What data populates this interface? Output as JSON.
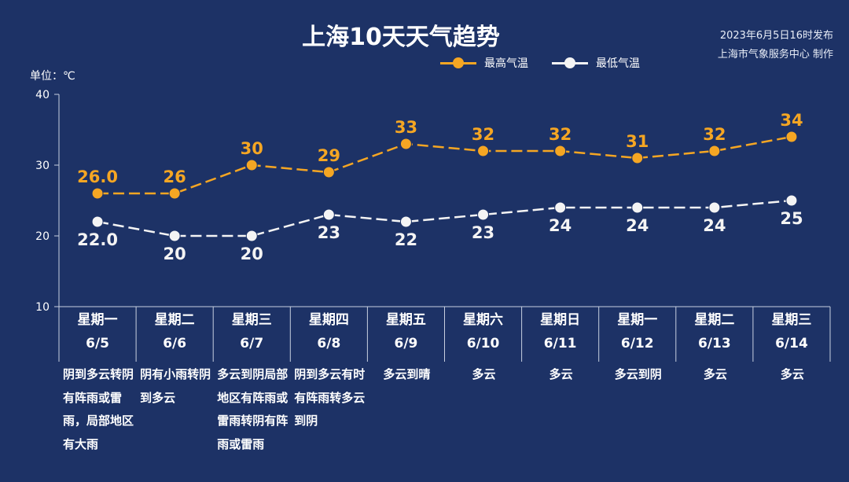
{
  "header": {
    "title": "上海10天天气趋势",
    "publish_line1": "2023年6月5日16时发布",
    "publish_line2": "上海市气象服务中心 制作",
    "unit": "单位：℃"
  },
  "colors": {
    "high": "#f5a623",
    "low": "#f4f4f4",
    "background": "#1d3266",
    "grid": "#c8d0e0"
  },
  "chart_data": {
    "type": "line",
    "title": "上海10天天气趋势",
    "ylabel": "单位：℃",
    "ylim": [
      10,
      40
    ],
    "yticks": [
      10,
      20,
      30,
      40
    ],
    "categories": [
      "6/5",
      "6/6",
      "6/7",
      "6/8",
      "6/9",
      "6/10",
      "6/11",
      "6/12",
      "6/13",
      "6/14"
    ],
    "series": [
      {
        "name": "最高气温",
        "values": [
          26,
          26,
          30,
          29,
          33,
          32,
          32,
          31,
          32,
          34
        ],
        "labels": [
          "26.0",
          "26",
          "30",
          "29",
          "33",
          "32",
          "32",
          "31",
          "32",
          "34"
        ],
        "color": "#f5a623"
      },
      {
        "name": "最低气温",
        "values": [
          22,
          20,
          20,
          23,
          22,
          23,
          24,
          24,
          24,
          25
        ],
        "labels": [
          "22.0",
          "20",
          "20",
          "23",
          "22",
          "23",
          "24",
          "24",
          "24",
          "25"
        ],
        "color": "#f4f4f4"
      }
    ],
    "legend": "top",
    "grid": false
  },
  "days": [
    {
      "weekday": "星期一",
      "date": "6/5",
      "weather": "阴到多云转阴有阵雨或雷雨，局部地区有大雨"
    },
    {
      "weekday": "星期二",
      "date": "6/6",
      "weather": "阴有小雨转阴到多云"
    },
    {
      "weekday": "星期三",
      "date": "6/7",
      "weather": "多云到阴局部地区有阵雨或雷雨转阴有阵雨或雷雨"
    },
    {
      "weekday": "星期四",
      "date": "6/8",
      "weather": "阴到多云有时有阵雨转多云到阴"
    },
    {
      "weekday": "星期五",
      "date": "6/9",
      "weather": "多云到晴"
    },
    {
      "weekday": "星期六",
      "date": "6/10",
      "weather": "多云"
    },
    {
      "weekday": "星期日",
      "date": "6/11",
      "weather": "多云"
    },
    {
      "weekday": "星期一",
      "date": "6/12",
      "weather": "多云到阴"
    },
    {
      "weekday": "星期二",
      "date": "6/13",
      "weather": "多云"
    },
    {
      "weekday": "星期三",
      "date": "6/14",
      "weather": "多云"
    }
  ]
}
